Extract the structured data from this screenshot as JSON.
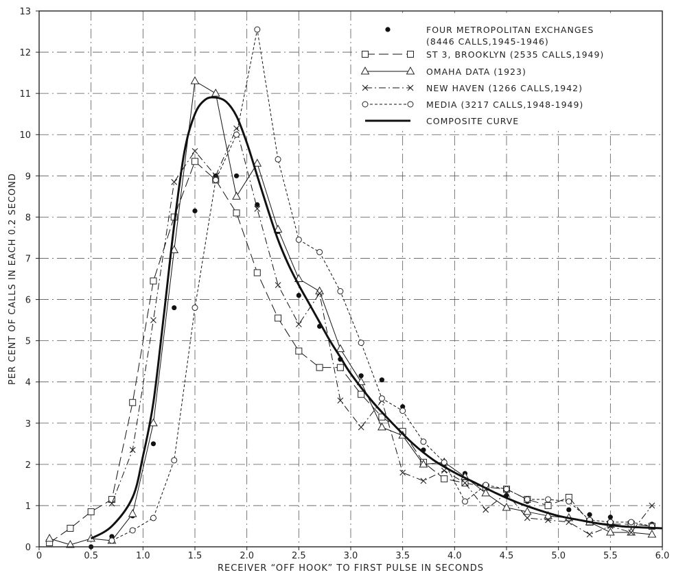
{
  "chart_data": {
    "type": "line",
    "title": "",
    "xlabel": "RECEIVER “OFF HOOK” TO FIRST PULSE IN SECONDS",
    "ylabel": "PER CENT OF CALLS IN EACH 0.2 SECOND",
    "xlim": [
      0,
      6.0
    ],
    "ylim": [
      0,
      13
    ],
    "x_ticks": [
      "0",
      "0.5",
      "1.0",
      "1.5",
      "2.0",
      "2.5",
      "3.0",
      "3.5",
      "4.0",
      "4.5",
      "5.0",
      "5.5",
      "6.0"
    ],
    "y_ticks": [
      "0",
      "1",
      "2",
      "3",
      "4",
      "5",
      "6",
      "7",
      "8",
      "9",
      "10",
      "11",
      "12",
      "13"
    ],
    "grid": "dash-dot",
    "legend_position": "top-right",
    "series": [
      {
        "name": "FOUR METROPOLITAN EXCHANGES",
        "name_line2": "(8446 CALLS,1945-1946)",
        "marker": "filled-dot",
        "line": "none",
        "points": [
          [
            0.5,
            0.0
          ],
          [
            0.7,
            0.25
          ],
          [
            0.9,
            0.75
          ],
          [
            1.1,
            2.5
          ],
          [
            1.3,
            5.8
          ],
          [
            1.5,
            8.15
          ],
          [
            1.7,
            9.0
          ],
          [
            1.9,
            9.0
          ],
          [
            2.1,
            8.3
          ],
          [
            2.3,
            7.65
          ],
          [
            2.5,
            6.1
          ],
          [
            2.7,
            5.35
          ],
          [
            2.9,
            4.55
          ],
          [
            3.1,
            4.15
          ],
          [
            3.3,
            4.05
          ],
          [
            3.5,
            3.4
          ],
          [
            3.7,
            2.35
          ],
          [
            3.9,
            2.0
          ],
          [
            4.1,
            1.78
          ],
          [
            4.3,
            1.45
          ],
          [
            4.5,
            1.25
          ],
          [
            4.7,
            1.1
          ],
          [
            4.9,
            0.98
          ],
          [
            5.1,
            0.9
          ],
          [
            5.3,
            0.78
          ],
          [
            5.5,
            0.72
          ],
          [
            5.7,
            0.6
          ],
          [
            5.9,
            0.55
          ]
        ]
      },
      {
        "name": "ST 3, BROOKLYN (2535 CALLS,1949)",
        "marker": "square",
        "line": "long-dash",
        "points": [
          [
            0.1,
            0.1
          ],
          [
            0.3,
            0.45
          ],
          [
            0.5,
            0.85
          ],
          [
            0.7,
            1.15
          ],
          [
            0.9,
            3.5
          ],
          [
            1.1,
            6.45
          ],
          [
            1.3,
            8.0
          ],
          [
            1.5,
            9.35
          ],
          [
            1.7,
            8.9
          ],
          [
            1.9,
            8.1
          ],
          [
            2.1,
            6.65
          ],
          [
            2.3,
            5.55
          ],
          [
            2.5,
            4.75
          ],
          [
            2.7,
            4.35
          ],
          [
            2.9,
            4.35
          ],
          [
            3.1,
            3.7
          ],
          [
            3.3,
            3.15
          ],
          [
            3.5,
            2.8
          ],
          [
            3.7,
            2.05
          ],
          [
            3.9,
            1.65
          ],
          [
            4.1,
            1.55
          ],
          [
            4.3,
            1.45
          ],
          [
            4.5,
            1.4
          ],
          [
            4.7,
            1.15
          ],
          [
            4.9,
            1.0
          ],
          [
            5.1,
            1.2
          ],
          [
            5.3,
            0.6
          ],
          [
            5.5,
            0.55
          ],
          [
            5.7,
            0.55
          ],
          [
            5.9,
            0.5
          ]
        ]
      },
      {
        "name": "OMAHA DATA (1923)",
        "marker": "triangle",
        "line": "solid",
        "points": [
          [
            0.1,
            0.2
          ],
          [
            0.3,
            0.05
          ],
          [
            0.5,
            0.2
          ],
          [
            0.7,
            0.15
          ],
          [
            0.9,
            0.8
          ],
          [
            1.1,
            3.0
          ],
          [
            1.3,
            7.2
          ],
          [
            1.5,
            11.3
          ],
          [
            1.7,
            11.0
          ],
          [
            1.9,
            8.5
          ],
          [
            2.1,
            9.3
          ],
          [
            2.3,
            7.7
          ],
          [
            2.5,
            6.5
          ],
          [
            2.7,
            6.2
          ],
          [
            2.9,
            4.8
          ],
          [
            3.1,
            4.0
          ],
          [
            3.3,
            2.9
          ],
          [
            3.5,
            2.7
          ],
          [
            3.7,
            2.0
          ],
          [
            3.9,
            2.05
          ],
          [
            4.1,
            1.7
          ],
          [
            4.3,
            1.3
          ],
          [
            4.5,
            0.95
          ],
          [
            4.7,
            0.85
          ],
          [
            4.9,
            0.75
          ],
          [
            5.1,
            0.7
          ],
          [
            5.3,
            0.6
          ],
          [
            5.5,
            0.35
          ],
          [
            5.7,
            0.35
          ],
          [
            5.9,
            0.3
          ]
        ]
      },
      {
        "name": "NEW HAVEN (1266 CALLS,1942)",
        "marker": "x",
        "line": "dash-dot",
        "points": [
          [
            0.7,
            1.05
          ],
          [
            0.9,
            2.35
          ],
          [
            1.1,
            5.5
          ],
          [
            1.3,
            8.85
          ],
          [
            1.5,
            9.6
          ],
          [
            1.7,
            9.0
          ],
          [
            1.9,
            10.15
          ],
          [
            2.1,
            8.2
          ],
          [
            2.3,
            6.35
          ],
          [
            2.5,
            5.4
          ],
          [
            2.7,
            6.15
          ],
          [
            2.9,
            3.55
          ],
          [
            3.1,
            2.9
          ],
          [
            3.3,
            3.55
          ],
          [
            3.5,
            1.8
          ],
          [
            3.7,
            1.6
          ],
          [
            3.9,
            1.85
          ],
          [
            4.1,
            1.55
          ],
          [
            4.3,
            0.9
          ],
          [
            4.5,
            1.3
          ],
          [
            4.7,
            0.7
          ],
          [
            4.9,
            0.65
          ],
          [
            5.1,
            0.6
          ],
          [
            5.3,
            0.3
          ],
          [
            5.5,
            0.5
          ],
          [
            5.7,
            0.35
          ],
          [
            5.9,
            1.0
          ]
        ]
      },
      {
        "name": "MEDIA (3217 CALLS,1948-1949)",
        "marker": "circle",
        "line": "short-dash",
        "points": [
          [
            0.7,
            0.15
          ],
          [
            0.9,
            0.4
          ],
          [
            1.1,
            0.7
          ],
          [
            1.3,
            2.1
          ],
          [
            1.5,
            5.8
          ],
          [
            1.7,
            8.9
          ],
          [
            1.9,
            10.0
          ],
          [
            2.1,
            12.55
          ],
          [
            2.3,
            9.4
          ],
          [
            2.5,
            7.45
          ],
          [
            2.7,
            7.15
          ],
          [
            2.9,
            6.2
          ],
          [
            3.1,
            4.95
          ],
          [
            3.3,
            3.6
          ],
          [
            3.5,
            3.3
          ],
          [
            3.7,
            2.55
          ],
          [
            3.9,
            2.05
          ],
          [
            4.1,
            1.1
          ],
          [
            4.3,
            1.5
          ],
          [
            4.5,
            1.4
          ],
          [
            4.7,
            1.15
          ],
          [
            4.9,
            1.15
          ],
          [
            5.1,
            1.1
          ],
          [
            5.3,
            0.65
          ],
          [
            5.5,
            0.6
          ],
          [
            5.7,
            0.6
          ],
          [
            5.9,
            0.5
          ]
        ]
      },
      {
        "name": "COMPOSITE CURVE",
        "marker": "none",
        "line": "thick-solid",
        "points": [
          [
            0.5,
            0.2
          ],
          [
            0.7,
            0.5
          ],
          [
            0.9,
            1.2
          ],
          [
            1.0,
            2.2
          ],
          [
            1.1,
            3.5
          ],
          [
            1.2,
            5.6
          ],
          [
            1.3,
            7.8
          ],
          [
            1.4,
            9.6
          ],
          [
            1.5,
            10.5
          ],
          [
            1.6,
            10.85
          ],
          [
            1.7,
            10.9
          ],
          [
            1.8,
            10.8
          ],
          [
            1.9,
            10.45
          ],
          [
            2.0,
            9.8
          ],
          [
            2.1,
            9.0
          ],
          [
            2.2,
            8.2
          ],
          [
            2.3,
            7.45
          ],
          [
            2.4,
            6.85
          ],
          [
            2.5,
            6.35
          ],
          [
            2.6,
            5.9
          ],
          [
            2.7,
            5.45
          ],
          [
            2.8,
            5.0
          ],
          [
            2.9,
            4.6
          ],
          [
            3.0,
            4.2
          ],
          [
            3.2,
            3.55
          ],
          [
            3.4,
            3.0
          ],
          [
            3.6,
            2.5
          ],
          [
            3.8,
            2.1
          ],
          [
            4.0,
            1.8
          ],
          [
            4.2,
            1.55
          ],
          [
            4.4,
            1.3
          ],
          [
            4.6,
            1.08
          ],
          [
            4.8,
            0.9
          ],
          [
            5.0,
            0.75
          ],
          [
            5.2,
            0.65
          ],
          [
            5.4,
            0.56
          ],
          [
            5.6,
            0.5
          ],
          [
            5.8,
            0.47
          ],
          [
            6.0,
            0.45
          ]
        ]
      }
    ]
  }
}
